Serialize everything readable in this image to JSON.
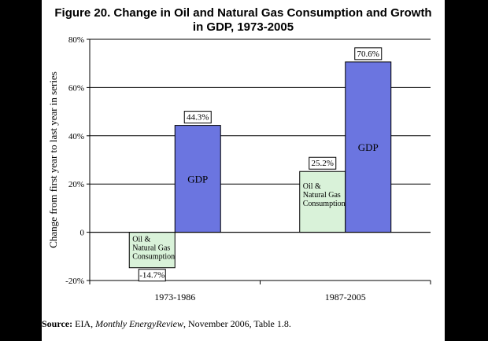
{
  "chart_data": {
    "type": "bar",
    "title_line1": "Figure 20. Change in Oil and Natural Gas Consumption and Growth",
    "title_line2": "in GDP, 1973-2005",
    "ylabel": "Change from first year to last year in series",
    "xlabel": "",
    "categories": [
      "1973-1986",
      "1987-2005"
    ],
    "series": [
      {
        "name": "Oil & Natural Gas Consumption",
        "label_lines": [
          "Oil &",
          "Natural Gas",
          "Consumption"
        ],
        "values": [
          -14.7,
          25.2
        ],
        "value_labels": [
          "-14.7%",
          "25.2%"
        ],
        "color": "#d9f2d9"
      },
      {
        "name": "GDP",
        "label_lines": [
          "GDP"
        ],
        "values": [
          44.3,
          70.6
        ],
        "value_labels": [
          "44.3%",
          "70.6%"
        ],
        "color": "#6b75e0"
      }
    ],
    "ylim": [
      -20,
      80
    ],
    "yticks": [
      -20,
      0,
      20,
      40,
      60,
      80
    ],
    "ytick_labels": [
      "-20%",
      "0",
      "20%",
      "40%",
      "60%",
      "80%"
    ],
    "grid": true,
    "legend": "none"
  },
  "source": {
    "label": "Source:",
    "text_before": "EIA, ",
    "publication": "Monthly EnergyReview",
    "text_after": ", November 2006, Table 1.8."
  }
}
